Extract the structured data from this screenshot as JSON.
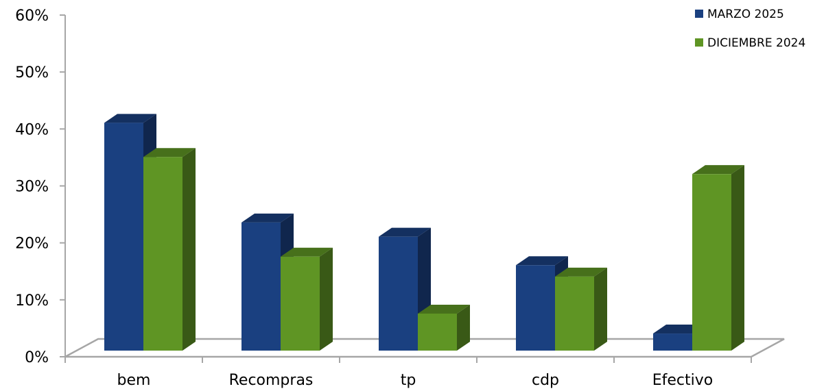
{
  "chart_data": {
    "type": "bar",
    "categories": [
      "bem",
      "Recompras",
      "tp",
      "cdp",
      "Efectivo"
    ],
    "series": [
      {
        "name": "MARZO 2025",
        "values": [
          40,
          22.5,
          20,
          15,
          3
        ],
        "color": "#1a4080"
      },
      {
        "name": "DICIEMBRE 2024",
        "values": [
          34,
          16.5,
          6.5,
          13,
          31
        ],
        "color": "#5f9524"
      }
    ],
    "ylim": [
      0,
      60
    ],
    "yticks": [
      "0%",
      "10%",
      "20%",
      "30%",
      "40%",
      "50%",
      "60%"
    ],
    "grid": false,
    "legend": "top-right",
    "title": "",
    "xlabel": "",
    "ylabel": ""
  }
}
